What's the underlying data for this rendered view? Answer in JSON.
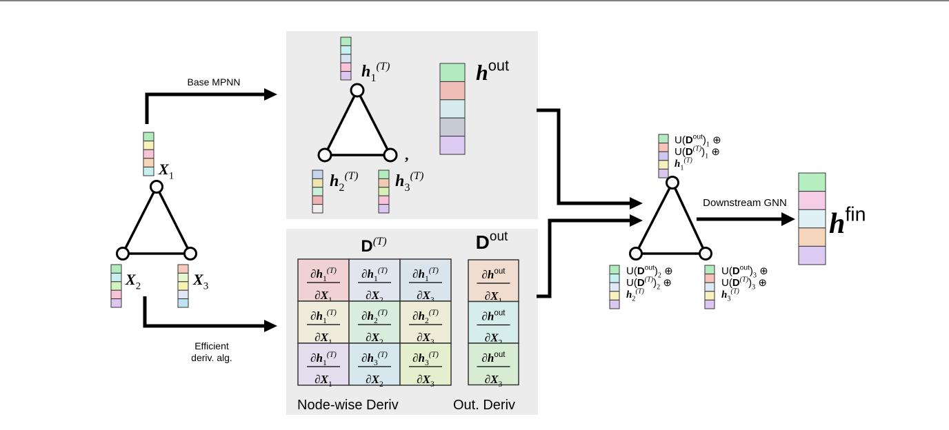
{
  "colors": {
    "panel": "#ececec",
    "stroke": "#000000"
  },
  "arrows": {
    "base_mpnn": "Base MPNN",
    "efficient_line1": "Efficient",
    "efficient_line2": "deriv. alg.",
    "downstream": "Downstream GNN"
  },
  "input_graph": {
    "nodes": [
      {
        "label": [
          {
            "t": "X",
            "s": "bi"
          },
          {
            "t": "1",
            "s": "sub"
          }
        ],
        "vector": [
          "#b3ebc0",
          "#f7f1b7",
          "#f9c3d7",
          "#f8d6b8",
          "#c6f0ef"
        ]
      },
      {
        "label": [
          {
            "t": "X",
            "s": "bi"
          },
          {
            "t": "2",
            "s": "sub"
          }
        ],
        "vector": [
          "#b3ebc0",
          "#c6f0ef",
          "#d2f2c0",
          "#f9c3d7",
          "#dcc6f0"
        ]
      },
      {
        "label": [
          {
            "t": "X",
            "s": "bi"
          },
          {
            "t": "3",
            "s": "sub"
          }
        ],
        "vector": [
          "#f6c9bd",
          "#e6f7cf",
          "#f7f3b3",
          "#e2e7f5",
          "#bfe3f5"
        ]
      }
    ]
  },
  "mpnn_panel": {
    "nodes": [
      {
        "label": [
          {
            "t": "h",
            "s": "bi"
          },
          {
            "t": "1",
            "s": "sub"
          },
          {
            "t": "(T)",
            "s": "sup"
          }
        ],
        "vector": [
          "#b3ebc0",
          "#c6f0ef",
          "#d7e2ef",
          "#f9c3d7",
          "#dcc6f0"
        ]
      },
      {
        "label": [
          {
            "t": "h",
            "s": "bi"
          },
          {
            "t": "2",
            "s": "sub"
          },
          {
            "t": "(T)",
            "s": "sup"
          }
        ],
        "vector": [
          "#c5d4ef",
          "#f1e4b0",
          "#cdeed8",
          "#f0b3b3",
          "#f1ebf0"
        ]
      },
      {
        "label": [
          {
            "t": "h",
            "s": "bi"
          },
          {
            "t": "3",
            "s": "sub"
          },
          {
            "t": "(T)",
            "s": "sup"
          }
        ],
        "vector": [
          "#b3ebc0",
          "#f0ccb4",
          "#d8efb7",
          "#f9c3d7",
          "#dcc6f0"
        ]
      }
    ],
    "comma": ",",
    "h_out": {
      "label": [
        {
          "t": "h",
          "s": "bi"
        },
        {
          "t": "out",
          "s": "sup"
        }
      ],
      "vector": [
        "#b3ebc0",
        "#f0c0b8",
        "#d6ebee",
        "#c7cbd6",
        "#dccaf0"
      ]
    }
  },
  "deriv_panel": {
    "d_t_title": [
      {
        "t": "D",
        "s": "b"
      },
      {
        "t": "(T)",
        "s": "sup"
      }
    ],
    "d_out_title": [
      {
        "t": "D",
        "s": "b"
      },
      {
        "t": "out",
        "s": "sup"
      }
    ],
    "matrix": [
      [
        {
          "num": [
            {
              "t": "∂"
            },
            {
              "t": "h",
              "s": "bi"
            },
            {
              "t": "1",
              "s": "sub"
            },
            {
              "t": "(T)",
              "s": "sup"
            }
          ],
          "den": [
            {
              "t": "∂"
            },
            {
              "t": "X",
              "s": "bi"
            },
            {
              "t": "1",
              "s": "sub"
            }
          ],
          "color": "#f0d2d2"
        },
        {
          "num": [
            {
              "t": "∂"
            },
            {
              "t": "h",
              "s": "bi"
            },
            {
              "t": "1",
              "s": "sub"
            },
            {
              "t": "(T)",
              "s": "sup"
            }
          ],
          "den": [
            {
              "t": "∂"
            },
            {
              "t": "X",
              "s": "bi"
            },
            {
              "t": "2",
              "s": "sub"
            }
          ],
          "color": "#e1e5f0"
        },
        {
          "num": [
            {
              "t": "∂"
            },
            {
              "t": "h",
              "s": "bi"
            },
            {
              "t": "1",
              "s": "sub"
            },
            {
              "t": "(T)",
              "s": "sup"
            }
          ],
          "den": [
            {
              "t": "∂"
            },
            {
              "t": "X",
              "s": "bi"
            },
            {
              "t": "3",
              "s": "sub"
            }
          ],
          "color": "#d9e4ec"
        }
      ],
      [
        {
          "num": [
            {
              "t": "∂"
            },
            {
              "t": "h",
              "s": "bi"
            },
            {
              "t": "1",
              "s": "sub"
            },
            {
              "t": "(T)",
              "s": "sup"
            }
          ],
          "den": [
            {
              "t": "∂"
            },
            {
              "t": "X",
              "s": "bi"
            },
            {
              "t": "1",
              "s": "sub"
            }
          ],
          "color": "#efecdc"
        },
        {
          "num": [
            {
              "t": "∂"
            },
            {
              "t": "h",
              "s": "bi"
            },
            {
              "t": "2",
              "s": "sub"
            },
            {
              "t": "(T)",
              "s": "sup"
            }
          ],
          "den": [
            {
              "t": "∂"
            },
            {
              "t": "X",
              "s": "bi"
            },
            {
              "t": "2",
              "s": "sub"
            }
          ],
          "color": "#d8eddb"
        },
        {
          "num": [
            {
              "t": "∂"
            },
            {
              "t": "h",
              "s": "bi"
            },
            {
              "t": "2",
              "s": "sub"
            },
            {
              "t": "(T)",
              "s": "sup"
            }
          ],
          "den": [
            {
              "t": "∂"
            },
            {
              "t": "X",
              "s": "bi"
            },
            {
              "t": "3",
              "s": "sub"
            }
          ],
          "color": "#eeebd6"
        }
      ],
      [
        {
          "num": [
            {
              "t": "∂"
            },
            {
              "t": "h",
              "s": "bi"
            },
            {
              "t": "1",
              "s": "sub"
            },
            {
              "t": "(T)",
              "s": "sup"
            }
          ],
          "den": [
            {
              "t": "∂"
            },
            {
              "t": "X",
              "s": "bi"
            },
            {
              "t": "1",
              "s": "sub"
            }
          ],
          "color": "#e3ddee"
        },
        {
          "num": [
            {
              "t": "∂"
            },
            {
              "t": "h",
              "s": "bi"
            },
            {
              "t": "3",
              "s": "sub"
            },
            {
              "t": "(T)",
              "s": "sup"
            }
          ],
          "den": [
            {
              "t": "∂"
            },
            {
              "t": "X",
              "s": "bi"
            },
            {
              "t": "2",
              "s": "sub"
            }
          ],
          "color": "#d7e7ee"
        },
        {
          "num": [
            {
              "t": "∂"
            },
            {
              "t": "h",
              "s": "bi"
            },
            {
              "t": "3",
              "s": "sub"
            },
            {
              "t": "(T)",
              "s": "sup"
            }
          ],
          "den": [
            {
              "t": "∂"
            },
            {
              "t": "X",
              "s": "bi"
            },
            {
              "t": "3",
              "s": "sub"
            }
          ],
          "color": "#e4efce"
        }
      ]
    ],
    "out_column": [
      {
        "num": [
          {
            "t": "∂"
          },
          {
            "t": "h",
            "s": "bi"
          },
          {
            "t": "out",
            "s": "sup"
          }
        ],
        "den": [
          {
            "t": "∂"
          },
          {
            "t": "X",
            "s": "bi"
          },
          {
            "t": "1",
            "s": "sub"
          }
        ],
        "color": "#f0ddd0"
      },
      {
        "num": [
          {
            "t": "∂"
          },
          {
            "t": "h",
            "s": "bi"
          },
          {
            "t": "out",
            "s": "sup"
          }
        ],
        "den": [
          {
            "t": "∂"
          },
          {
            "t": "X",
            "s": "bi"
          },
          {
            "t": "2",
            "s": "sub"
          }
        ],
        "color": "#d5eeec"
      },
      {
        "num": [
          {
            "t": "∂"
          },
          {
            "t": "h",
            "s": "bi"
          },
          {
            "t": "out",
            "s": "sup"
          }
        ],
        "den": [
          {
            "t": "∂"
          },
          {
            "t": "X",
            "s": "bi"
          },
          {
            "t": "3",
            "s": "sub"
          }
        ],
        "color": "#d8ecd3"
      }
    ],
    "node_wise_label": "Node-wise Deriv",
    "out_label": "Out. Deriv"
  },
  "final_graph": {
    "nodes": [
      {
        "lines": [
          [
            {
              "t": "U("
            },
            {
              "t": "D",
              "s": "b"
            },
            {
              "t": "out",
              "s": "sup"
            },
            {
              "t": ")"
            },
            {
              "t": "1",
              "s": "sub"
            },
            {
              "t": " ⊕"
            }
          ],
          [
            {
              "t": "U("
            },
            {
              "t": "D",
              "s": "b"
            },
            {
              "t": "(T)",
              "s": "sup"
            },
            {
              "t": ")"
            },
            {
              "t": "1",
              "s": "sub"
            },
            {
              "t": " ⊕"
            }
          ],
          [
            {
              "t": "h",
              "s": "bi"
            },
            {
              "t": "1",
              "s": "sub"
            },
            {
              "t": "(T)",
              "s": "sup"
            }
          ]
        ],
        "vector": [
          "#b3ebc0",
          "#f6c3b8",
          "#ccc8f0",
          "#f7f1c0",
          "#dcc6f0"
        ]
      },
      {
        "lines": [
          [
            {
              "t": "U("
            },
            {
              "t": "D",
              "s": "b"
            },
            {
              "t": "out",
              "s": "sup"
            },
            {
              "t": ")"
            },
            {
              "t": "2",
              "s": "sub"
            },
            {
              "t": " ⊕"
            }
          ],
          [
            {
              "t": "U("
            },
            {
              "t": "D",
              "s": "b"
            },
            {
              "t": "(T)",
              "s": "sup"
            },
            {
              "t": ")"
            },
            {
              "t": "2",
              "s": "sub"
            },
            {
              "t": " ⊕"
            }
          ],
          [
            {
              "t": "h",
              "s": "bi"
            },
            {
              "t": "2",
              "s": "sub"
            },
            {
              "t": "(T)",
              "s": "sup"
            }
          ]
        ],
        "vector": [
          "#b3ebc0",
          "#c6f0ef",
          "#dfe8f6",
          "#f7f1c0",
          "#dcc6f0"
        ]
      },
      {
        "lines": [
          [
            {
              "t": "U("
            },
            {
              "t": "D",
              "s": "b"
            },
            {
              "t": "out",
              "s": "sup"
            },
            {
              "t": ")"
            },
            {
              "t": "3",
              "s": "sub"
            },
            {
              "t": " ⊕"
            }
          ],
          [
            {
              "t": "U("
            },
            {
              "t": "D",
              "s": "b"
            },
            {
              "t": "(T)",
              "s": "sup"
            },
            {
              "t": ")"
            },
            {
              "t": "3",
              "s": "sub"
            },
            {
              "t": " ⊕"
            }
          ],
          [
            {
              "t": "h",
              "s": "bi"
            },
            {
              "t": "3",
              "s": "sub"
            },
            {
              "t": "(T)",
              "s": "sup"
            }
          ]
        ],
        "vector": [
          "#b3ebc0",
          "#f6c3b8",
          "#dfe8f6",
          "#f7f1c0",
          "#dcc6f0"
        ]
      }
    ]
  },
  "h_fin": {
    "label": [
      {
        "t": "h",
        "s": "bi"
      },
      {
        "t": "fin",
        "s": "sup"
      }
    ],
    "vector": [
      "#b7eec0",
      "#f6cde6",
      "#dff1f5",
      "#f5d6bd",
      "#dccaf2"
    ]
  }
}
